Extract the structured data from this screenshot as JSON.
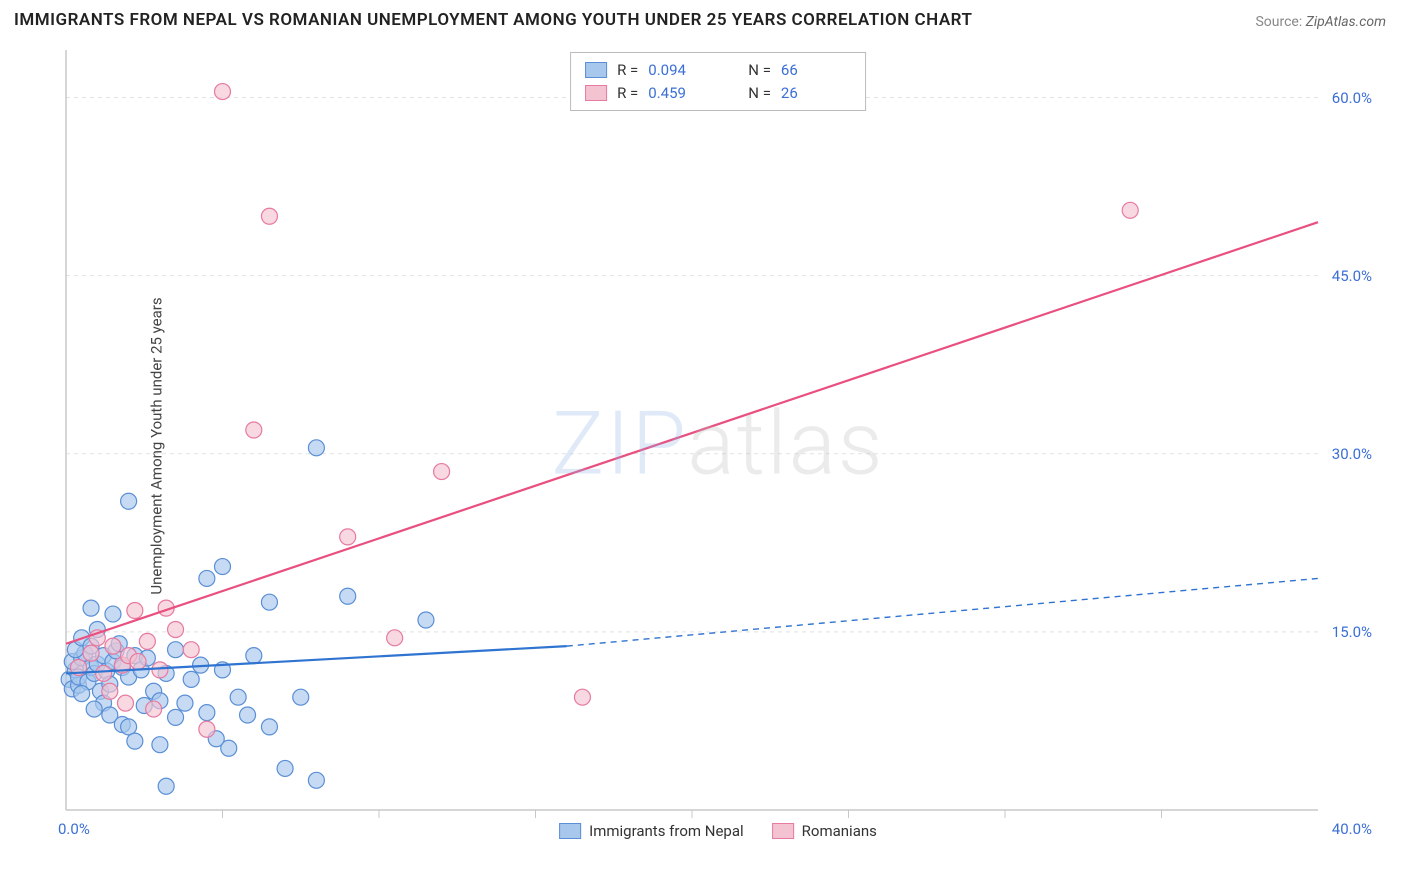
{
  "title": "IMMIGRANTS FROM NEPAL VS ROMANIAN UNEMPLOYMENT AMONG YOUTH UNDER 25 YEARS CORRELATION CHART",
  "source": {
    "label": "Source:",
    "value": "ZipAtlas.com"
  },
  "ylabel": "Unemployment Among Youth under 25 years",
  "watermark": {
    "accent": "ZIP",
    "rest": "atlas"
  },
  "chart": {
    "type": "scatter-with-regression",
    "xlim": [
      0,
      40
    ],
    "ylim": [
      0,
      64
    ],
    "ygrid_values": [
      15,
      30,
      45,
      60
    ],
    "ytick_labels": [
      "15.0%",
      "30.0%",
      "45.0%",
      "60.0%"
    ],
    "xtick_minor": [
      5,
      10,
      15,
      20,
      25,
      30,
      35
    ],
    "x_origin_label": "0.0%",
    "x_max_label": "40.0%",
    "background_color": "#ffffff",
    "grid_color": "#e2e2e2",
    "axis_color": "#c8c8c8",
    "marker_radius": 8,
    "marker_stroke_width": 1.2,
    "line_width": 2.2,
    "series": [
      {
        "key": "nepal",
        "label": "Immigrants from Nepal",
        "color_fill": "#a8c7ec",
        "color_stroke": "#5a8fd6",
        "line_color": "#2f74d0",
        "r": "0.094",
        "n": "66",
        "regression": {
          "x1": 0,
          "y1": 11.5,
          "x2": 16,
          "y2": 13.8,
          "dash_to_x": 40,
          "dash_to_y": 19.5
        },
        "points": [
          [
            0.1,
            11.0
          ],
          [
            0.2,
            10.2
          ],
          [
            0.3,
            11.8
          ],
          [
            0.2,
            12.5
          ],
          [
            0.4,
            10.5
          ],
          [
            0.5,
            12.8
          ],
          [
            0.4,
            11.2
          ],
          [
            0.6,
            13.2
          ],
          [
            0.7,
            10.8
          ],
          [
            0.8,
            12.0
          ],
          [
            0.5,
            9.8
          ],
          [
            0.3,
            13.5
          ],
          [
            0.9,
            11.5
          ],
          [
            1.0,
            12.3
          ],
          [
            1.1,
            10.0
          ],
          [
            1.2,
            13.0
          ],
          [
            0.5,
            14.5
          ],
          [
            0.8,
            13.8
          ],
          [
            1.3,
            11.7
          ],
          [
            1.5,
            12.5
          ],
          [
            1.0,
            15.2
          ],
          [
            1.4,
            10.6
          ],
          [
            1.6,
            13.4
          ],
          [
            1.8,
            12.0
          ],
          [
            2.0,
            11.2
          ],
          [
            1.7,
            14.0
          ],
          [
            2.2,
            13.0
          ],
          [
            2.4,
            11.8
          ],
          [
            1.5,
            16.5
          ],
          [
            1.2,
            9.0
          ],
          [
            0.9,
            8.5
          ],
          [
            1.4,
            8.0
          ],
          [
            1.8,
            7.2
          ],
          [
            2.5,
            8.8
          ],
          [
            2.0,
            7.0
          ],
          [
            2.8,
            10.0
          ],
          [
            3.0,
            9.2
          ],
          [
            3.2,
            11.5
          ],
          [
            3.5,
            7.8
          ],
          [
            2.2,
            5.8
          ],
          [
            3.0,
            5.5
          ],
          [
            2.6,
            12.8
          ],
          [
            3.8,
            9.0
          ],
          [
            4.0,
            11.0
          ],
          [
            4.3,
            12.2
          ],
          [
            3.5,
            13.5
          ],
          [
            4.5,
            8.2
          ],
          [
            5.0,
            11.8
          ],
          [
            5.5,
            9.5
          ],
          [
            5.8,
            8.0
          ],
          [
            6.0,
            13.0
          ],
          [
            6.5,
            7.0
          ],
          [
            7.0,
            3.5
          ],
          [
            7.5,
            9.5
          ],
          [
            8.0,
            2.5
          ],
          [
            5.2,
            5.2
          ],
          [
            4.8,
            6.0
          ],
          [
            3.2,
            2.0
          ],
          [
            2.0,
            26.0
          ],
          [
            4.5,
            19.5
          ],
          [
            5.0,
            20.5
          ],
          [
            6.5,
            17.5
          ],
          [
            9.0,
            18.0
          ],
          [
            8.0,
            30.5
          ],
          [
            11.5,
            16.0
          ],
          [
            0.8,
            17.0
          ]
        ]
      },
      {
        "key": "romanian",
        "label": "Romanians",
        "color_fill": "#f4c3d1",
        "color_stroke": "#e77aa0",
        "line_color": "#e94f7f",
        "r": "0.459",
        "n": "26",
        "regression": {
          "x1": 0,
          "y1": 14.0,
          "x2": 40,
          "y2": 49.5
        },
        "points": [
          [
            0.4,
            12.0
          ],
          [
            0.8,
            13.2
          ],
          [
            1.2,
            11.5
          ],
          [
            1.5,
            13.8
          ],
          [
            1.8,
            12.2
          ],
          [
            1.0,
            14.5
          ],
          [
            2.0,
            13.0
          ],
          [
            2.3,
            12.5
          ],
          [
            2.6,
            14.2
          ],
          [
            3.0,
            11.8
          ],
          [
            2.2,
            16.8
          ],
          [
            3.2,
            17.0
          ],
          [
            3.5,
            15.2
          ],
          [
            2.8,
            8.5
          ],
          [
            4.0,
            13.5
          ],
          [
            4.5,
            6.8
          ],
          [
            5.0,
            60.5
          ],
          [
            6.0,
            32.0
          ],
          [
            6.5,
            50.0
          ],
          [
            9.0,
            23.0
          ],
          [
            10.5,
            14.5
          ],
          [
            12.0,
            28.5
          ],
          [
            16.5,
            9.5
          ],
          [
            34.0,
            50.5
          ],
          [
            1.4,
            10.0
          ],
          [
            1.9,
            9.0
          ]
        ]
      }
    ]
  },
  "legend_top": {
    "r_label": "R =",
    "n_label": "N ="
  },
  "colors": {
    "tick_text": "#3b6fd6",
    "title_text": "#222222"
  }
}
